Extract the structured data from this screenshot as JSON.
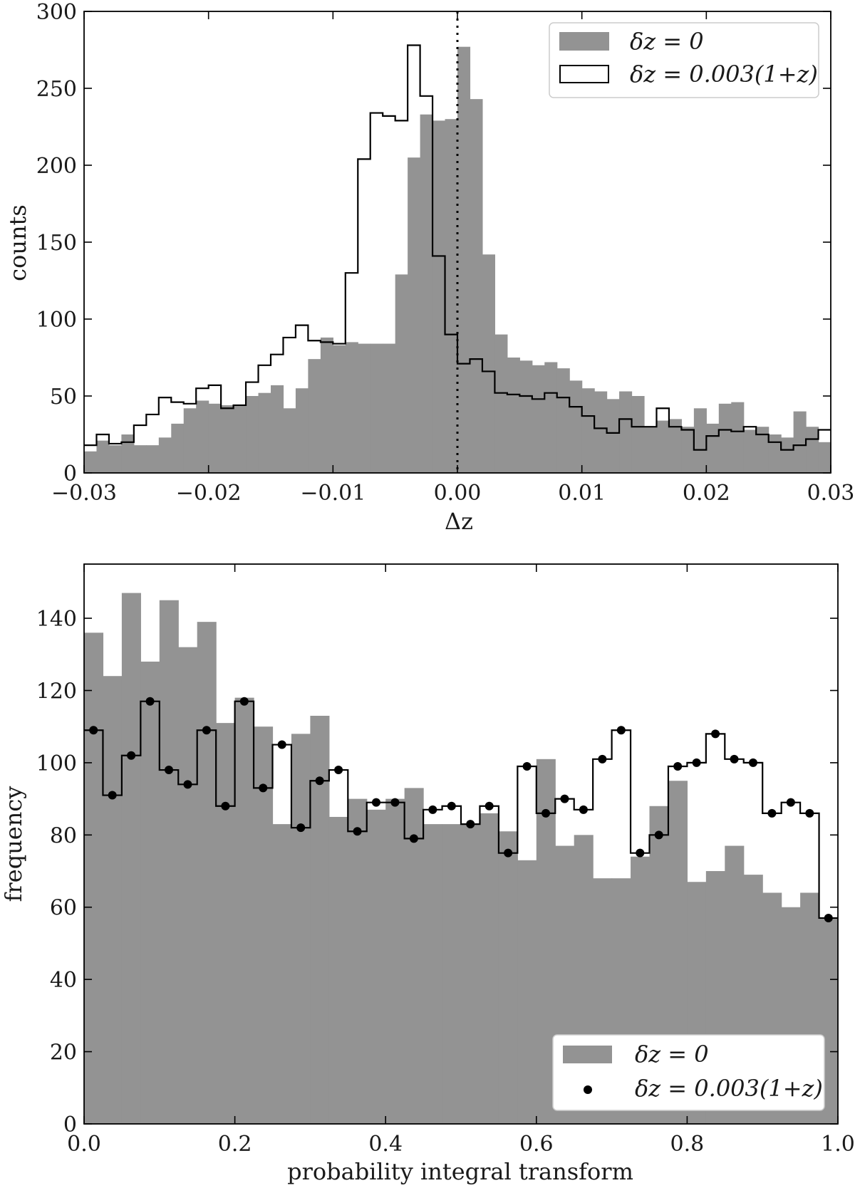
{
  "chart_data": [
    {
      "type": "bar",
      "xlabel": "Δz",
      "ylabel": "counts",
      "xlim": [
        -0.03,
        0.03
      ],
      "ylim": [
        0,
        300
      ],
      "bin_width": 0.001,
      "xticks": [
        -0.03,
        -0.02,
        -0.01,
        0.0,
        0.01,
        0.02,
        0.03
      ],
      "xtick_labels": [
        "−0.03",
        "−0.02",
        "−0.01",
        "0.00",
        "0.01",
        "0.02",
        "0.03"
      ],
      "yticks": [
        0,
        50,
        100,
        150,
        200,
        250,
        300
      ],
      "ytick_labels": [
        "0",
        "50",
        "100",
        "150",
        "200",
        "250",
        "300"
      ],
      "vline": 0.0,
      "legend_position": "top-right",
      "grid": false,
      "colors": {
        "filled": "#939393",
        "step": "#000000"
      },
      "series": [
        {
          "name": "δz = 0",
          "style": "filled",
          "values": [
            14,
            21,
            18,
            25,
            18,
            18,
            23,
            32,
            42,
            47,
            45,
            44,
            44,
            50,
            52,
            57,
            42,
            55,
            74,
            88,
            83,
            85,
            84,
            84,
            84,
            129,
            205,
            233,
            229,
            230,
            277,
            243,
            142,
            90,
            75,
            73,
            70,
            72,
            68,
            60,
            55,
            53,
            48,
            53,
            50,
            30,
            34,
            35,
            30,
            42,
            32,
            45,
            46,
            28,
            30,
            25,
            23,
            40,
            30,
            20
          ]
        },
        {
          "name": "δz = 0.003(1+z)",
          "style": "step",
          "values": [
            18,
            25,
            19,
            20,
            31,
            38,
            49,
            46,
            45,
            55,
            57,
            42,
            44,
            59,
            70,
            77,
            88,
            96,
            86,
            85,
            84,
            130,
            204,
            234,
            232,
            229,
            278,
            245,
            141,
            90,
            71,
            74,
            66,
            52,
            51,
            50,
            48,
            52,
            49,
            43,
            37,
            29,
            26,
            35,
            30,
            30,
            42,
            30,
            28,
            15,
            24,
            28,
            27,
            30,
            25,
            20,
            15,
            18,
            22,
            28
          ]
        }
      ]
    },
    {
      "type": "bar",
      "xlabel": "probability integral transform",
      "ylabel": "frequency",
      "xlim": [
        0.0,
        1.0
      ],
      "ylim": [
        0,
        155
      ],
      "bin_width": 0.025,
      "xticks": [
        0.0,
        0.2,
        0.4,
        0.6,
        0.8,
        1.0
      ],
      "xtick_labels": [
        "0.0",
        "0.2",
        "0.4",
        "0.6",
        "0.8",
        "1.0"
      ],
      "yticks": [
        0,
        20,
        40,
        60,
        80,
        100,
        120,
        140
      ],
      "ytick_labels": [
        "0",
        "20",
        "40",
        "60",
        "80",
        "100",
        "120",
        "140"
      ],
      "legend_position": "bottom-right",
      "grid": false,
      "colors": {
        "filled": "#939393",
        "step": "#000000"
      },
      "series": [
        {
          "name": "δz = 0",
          "style": "filled",
          "values": [
            136,
            124,
            147,
            128,
            145,
            132,
            139,
            111,
            118,
            110,
            83,
            108,
            113,
            85,
            90,
            87,
            90,
            93,
            83,
            83,
            83,
            86,
            81,
            73,
            101,
            77,
            80,
            68,
            68,
            74,
            88,
            95,
            67,
            70,
            77,
            69,
            64,
            60,
            64,
            57
          ]
        },
        {
          "name": "δz = 0.003(1+z)",
          "style": "step-points",
          "values": [
            109,
            91,
            102,
            117,
            98,
            94,
            109,
            88,
            117,
            93,
            105,
            82,
            95,
            98,
            81,
            89,
            89,
            79,
            87,
            88,
            83,
            88,
            75,
            99,
            86,
            90,
            87,
            101,
            109,
            75,
            80,
            99,
            100,
            108,
            101,
            100,
            86,
            89,
            86,
            57
          ]
        }
      ]
    }
  ]
}
